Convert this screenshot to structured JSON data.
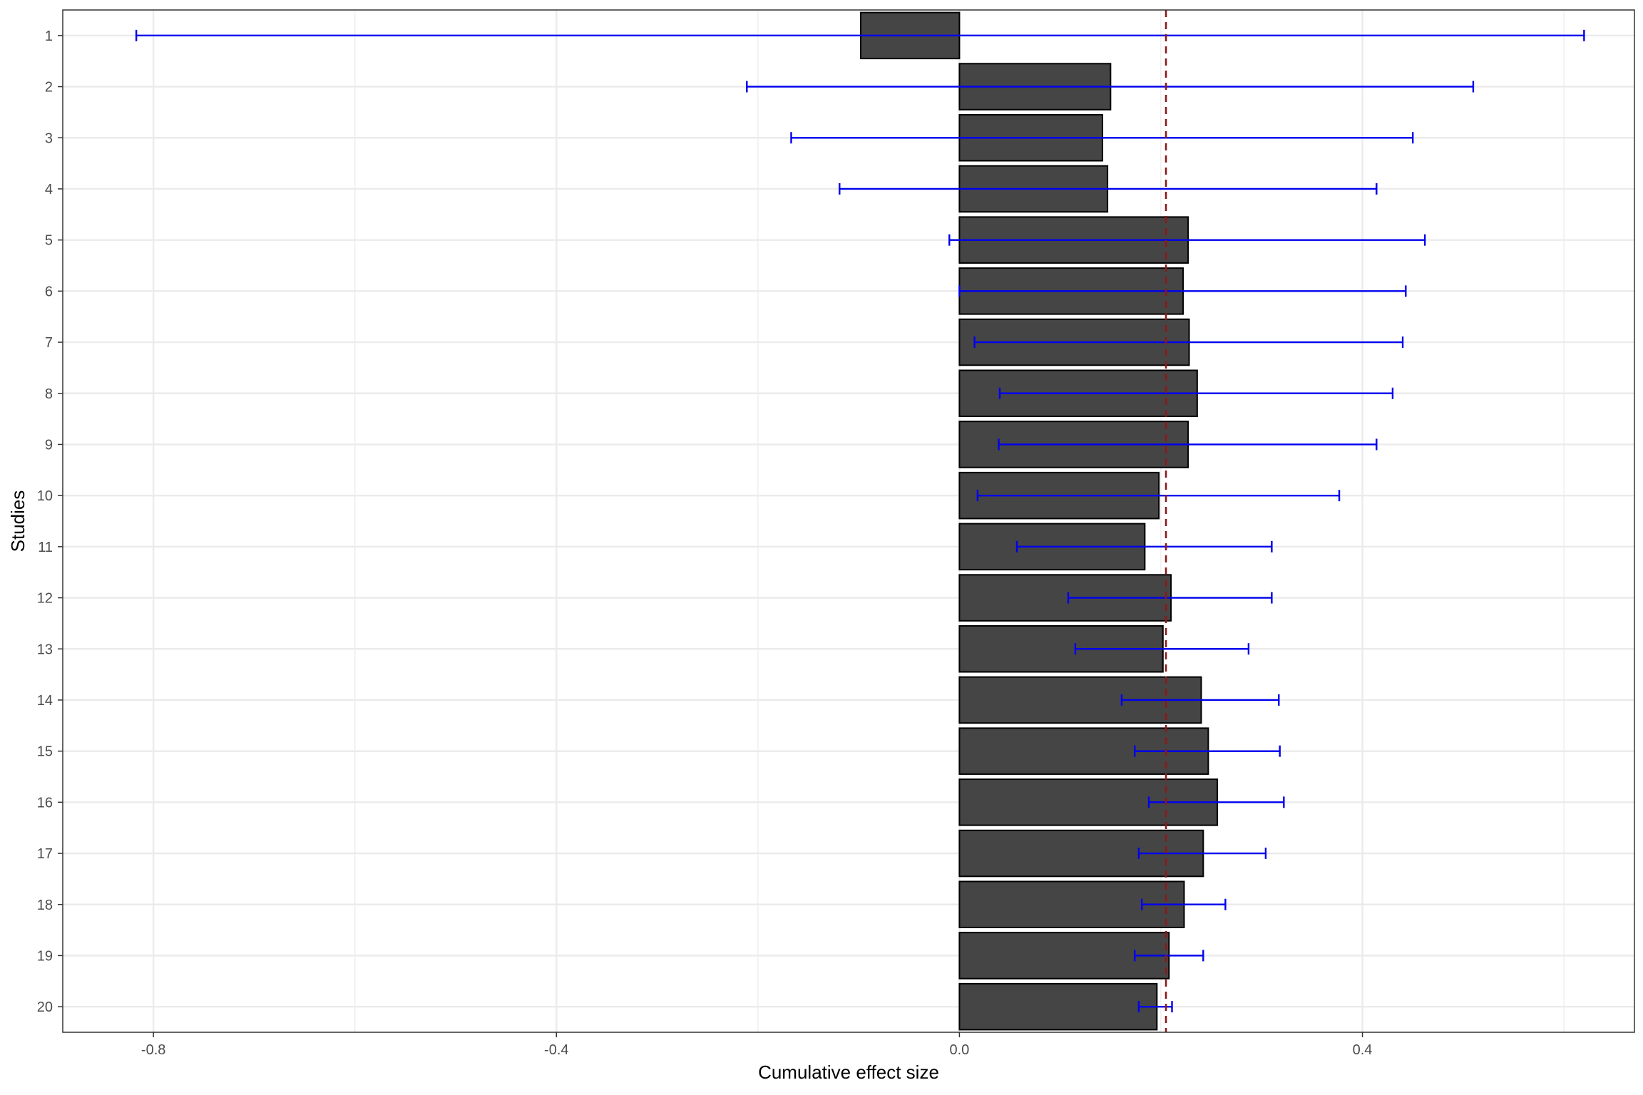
{
  "chart_data": {
    "type": "bar",
    "orientation": "horizontal",
    "title": "",
    "xlabel": "Cumulative effect size",
    "ylabel": "Studies",
    "xlim": [
      -0.89,
      0.67
    ],
    "x_ticks": [
      -0.8,
      -0.4,
      0.0,
      0.4
    ],
    "x_tick_labels": [
      "-0.8",
      "-0.4",
      "0.0",
      "0.4"
    ],
    "grid": true,
    "legend": "none",
    "categories": [
      "1",
      "2",
      "3",
      "4",
      "5",
      "6",
      "7",
      "8",
      "9",
      "10",
      "11",
      "12",
      "13",
      "14",
      "15",
      "16",
      "17",
      "18",
      "19",
      "20"
    ],
    "values": [
      -0.098,
      0.15,
      0.142,
      0.147,
      0.227,
      0.222,
      0.228,
      0.236,
      0.227,
      0.198,
      0.184,
      0.21,
      0.202,
      0.24,
      0.247,
      0.256,
      0.242,
      0.223,
      0.208,
      0.196
    ],
    "ci_lower": [
      -0.817,
      -0.211,
      -0.167,
      -0.119,
      -0.01,
      0.0,
      0.015,
      0.04,
      0.039,
      0.018,
      0.057,
      0.108,
      0.115,
      0.161,
      0.174,
      0.188,
      0.178,
      0.181,
      0.174,
      0.178
    ],
    "ci_upper": [
      0.62,
      0.51,
      0.45,
      0.414,
      0.462,
      0.443,
      0.44,
      0.43,
      0.414,
      0.377,
      0.31,
      0.31,
      0.287,
      0.317,
      0.318,
      0.322,
      0.304,
      0.264,
      0.242,
      0.211
    ],
    "reference_line": 0.205,
    "colors": {
      "bar_fill": "#454545",
      "bar_stroke": "#000000",
      "error_bar": "#0000ee",
      "reference_line": "#8b1a1a",
      "grid": "#ebebeb",
      "panel_border": "#333333"
    }
  }
}
